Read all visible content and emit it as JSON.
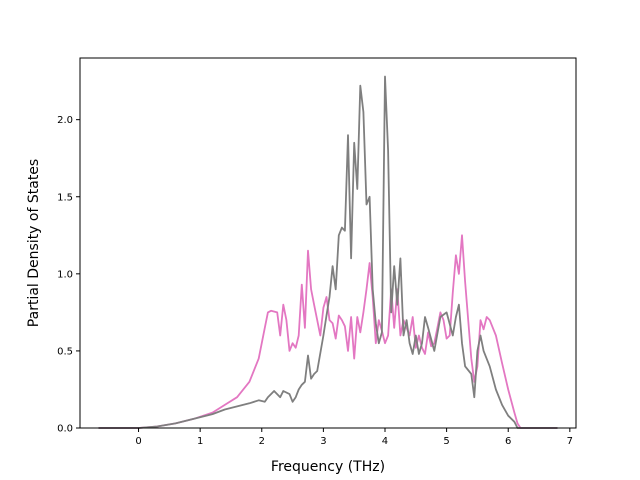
{
  "chart_data": {
    "type": "line",
    "xlabel": "Frequency (THz)",
    "ylabel": "Partial Density of States",
    "xlim": [
      -0.95,
      7.1
    ],
    "ylim": [
      0,
      2.4
    ],
    "xticks": [
      "0",
      "1",
      "2",
      "3",
      "4",
      "5",
      "6",
      "7"
    ],
    "yticks": [
      "0.0",
      "0.5",
      "1.0",
      "1.5",
      "2.0"
    ],
    "grid": false,
    "legend": "none",
    "series": [
      {
        "color": "#e377c2",
        "x": [
          -0.65,
          0.0,
          0.3,
          0.6,
          0.9,
          1.2,
          1.4,
          1.6,
          1.8,
          1.95,
          2.05,
          2.1,
          2.15,
          2.25,
          2.3,
          2.35,
          2.4,
          2.45,
          2.5,
          2.55,
          2.6,
          2.65,
          2.7,
          2.75,
          2.8,
          2.85,
          2.9,
          2.95,
          3.0,
          3.05,
          3.1,
          3.15,
          3.2,
          3.25,
          3.3,
          3.35,
          3.4,
          3.45,
          3.5,
          3.55,
          3.6,
          3.65,
          3.7,
          3.75,
          3.8,
          3.85,
          3.9,
          3.95,
          4.0,
          4.05,
          4.1,
          4.15,
          4.2,
          4.25,
          4.3,
          4.35,
          4.4,
          4.45,
          4.5,
          4.55,
          4.6,
          4.65,
          4.7,
          4.75,
          4.8,
          4.85,
          4.9,
          4.95,
          5.0,
          5.05,
          5.1,
          5.15,
          5.2,
          5.25,
          5.3,
          5.35,
          5.4,
          5.45,
          5.5,
          5.55,
          5.6,
          5.65,
          5.7,
          5.8,
          5.9,
          6.0,
          6.1,
          6.15,
          6.2,
          6.8
        ],
        "y": [
          0.0,
          0.0,
          0.01,
          0.03,
          0.06,
          0.1,
          0.15,
          0.2,
          0.3,
          0.45,
          0.65,
          0.75,
          0.76,
          0.75,
          0.6,
          0.8,
          0.7,
          0.5,
          0.55,
          0.52,
          0.6,
          0.93,
          0.65,
          1.15,
          0.9,
          0.8,
          0.7,
          0.6,
          0.78,
          0.85,
          0.7,
          0.68,
          0.58,
          0.73,
          0.7,
          0.66,
          0.5,
          0.72,
          0.45,
          0.72,
          0.62,
          0.75,
          0.9,
          1.07,
          0.85,
          0.55,
          0.7,
          0.63,
          0.55,
          0.6,
          0.9,
          0.65,
          0.9,
          0.6,
          0.7,
          0.65,
          0.6,
          0.72,
          0.52,
          0.6,
          0.52,
          0.48,
          0.62,
          0.53,
          0.55,
          0.65,
          0.75,
          0.7,
          0.58,
          0.6,
          0.88,
          1.12,
          1.0,
          1.25,
          0.95,
          0.7,
          0.45,
          0.3,
          0.4,
          0.7,
          0.64,
          0.72,
          0.7,
          0.6,
          0.42,
          0.25,
          0.1,
          0.03,
          0.0,
          0.0
        ]
      },
      {
        "color": "#7f7f7f",
        "x": [
          -0.65,
          0.0,
          0.3,
          0.6,
          0.9,
          1.2,
          1.4,
          1.6,
          1.8,
          1.95,
          2.05,
          2.1,
          2.2,
          2.3,
          2.35,
          2.45,
          2.5,
          2.55,
          2.6,
          2.65,
          2.7,
          2.75,
          2.8,
          2.85,
          2.9,
          3.0,
          3.05,
          3.1,
          3.15,
          3.2,
          3.25,
          3.3,
          3.35,
          3.4,
          3.45,
          3.5,
          3.55,
          3.6,
          3.65,
          3.7,
          3.75,
          3.8,
          3.85,
          3.9,
          3.95,
          4.0,
          4.05,
          4.1,
          4.15,
          4.2,
          4.25,
          4.3,
          4.35,
          4.4,
          4.45,
          4.5,
          4.55,
          4.6,
          4.65,
          4.7,
          4.8,
          4.9,
          5.0,
          5.1,
          5.15,
          5.2,
          5.25,
          5.3,
          5.4,
          5.45,
          5.5,
          5.55,
          5.6,
          5.7,
          5.8,
          5.9,
          6.0,
          6.1,
          6.15,
          6.2,
          6.8
        ],
        "y": [
          0.0,
          0.0,
          0.01,
          0.03,
          0.06,
          0.09,
          0.12,
          0.14,
          0.16,
          0.18,
          0.17,
          0.2,
          0.24,
          0.2,
          0.24,
          0.22,
          0.17,
          0.2,
          0.25,
          0.28,
          0.3,
          0.47,
          0.32,
          0.35,
          0.37,
          0.6,
          0.73,
          0.85,
          1.05,
          0.9,
          1.25,
          1.3,
          1.28,
          1.9,
          1.1,
          1.85,
          1.55,
          2.22,
          2.05,
          1.45,
          1.5,
          0.9,
          0.68,
          0.55,
          0.62,
          2.28,
          1.8,
          0.75,
          1.05,
          0.8,
          1.1,
          0.6,
          0.7,
          0.55,
          0.48,
          0.6,
          0.48,
          0.55,
          0.72,
          0.65,
          0.5,
          0.72,
          0.75,
          0.6,
          0.72,
          0.8,
          0.55,
          0.4,
          0.35,
          0.2,
          0.5,
          0.6,
          0.5,
          0.4,
          0.25,
          0.15,
          0.08,
          0.04,
          0.0,
          0.0,
          0.0
        ]
      }
    ]
  }
}
